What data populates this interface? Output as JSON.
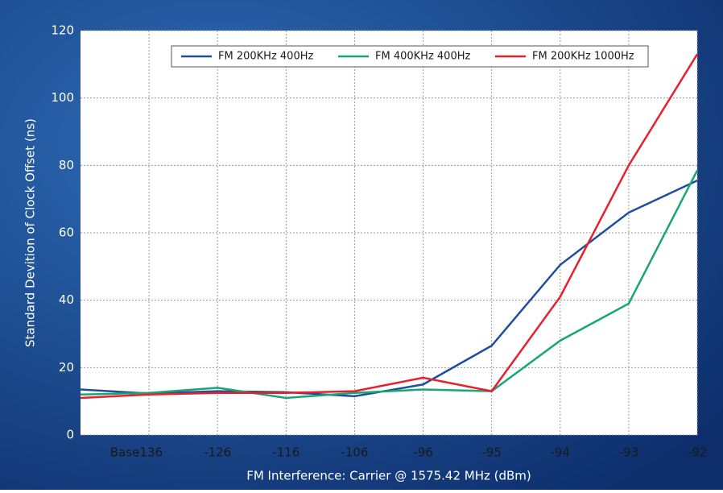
{
  "chart_data": {
    "type": "line",
    "x_label": "FM Interference: Carrier @ 1575.42 MHz (dBm)",
    "y_label": "Standard Devition of Clock Offset (ns)",
    "categories": [
      "Base",
      "-136",
      "-126",
      "-116",
      "-106",
      "-96",
      "-95",
      "-94",
      "-93",
      "-92"
    ],
    "series": [
      {
        "name": "FM 200KHz 400Hz",
        "color": "#1f4e9c",
        "values": [
          13.5,
          12.3,
          13,
          12.7,
          11.5,
          15,
          26.5,
          50.5,
          66,
          75.5
        ]
      },
      {
        "name": "FM 400KHz 400Hz",
        "color": "#1aa673",
        "values": [
          12,
          12.5,
          14,
          11,
          12.5,
          13.5,
          13,
          28,
          39,
          78.5
        ]
      },
      {
        "name": "FM 200KHz 1000Hz",
        "color": "#e8202e",
        "values": [
          11,
          12,
          12.5,
          12.5,
          13,
          17,
          13,
          41,
          80,
          113
        ]
      }
    ],
    "ylim": [
      0,
      120
    ],
    "yticks": [
      0,
      20,
      40,
      60,
      80,
      100,
      120
    ],
    "grid": true,
    "legend": "top"
  }
}
